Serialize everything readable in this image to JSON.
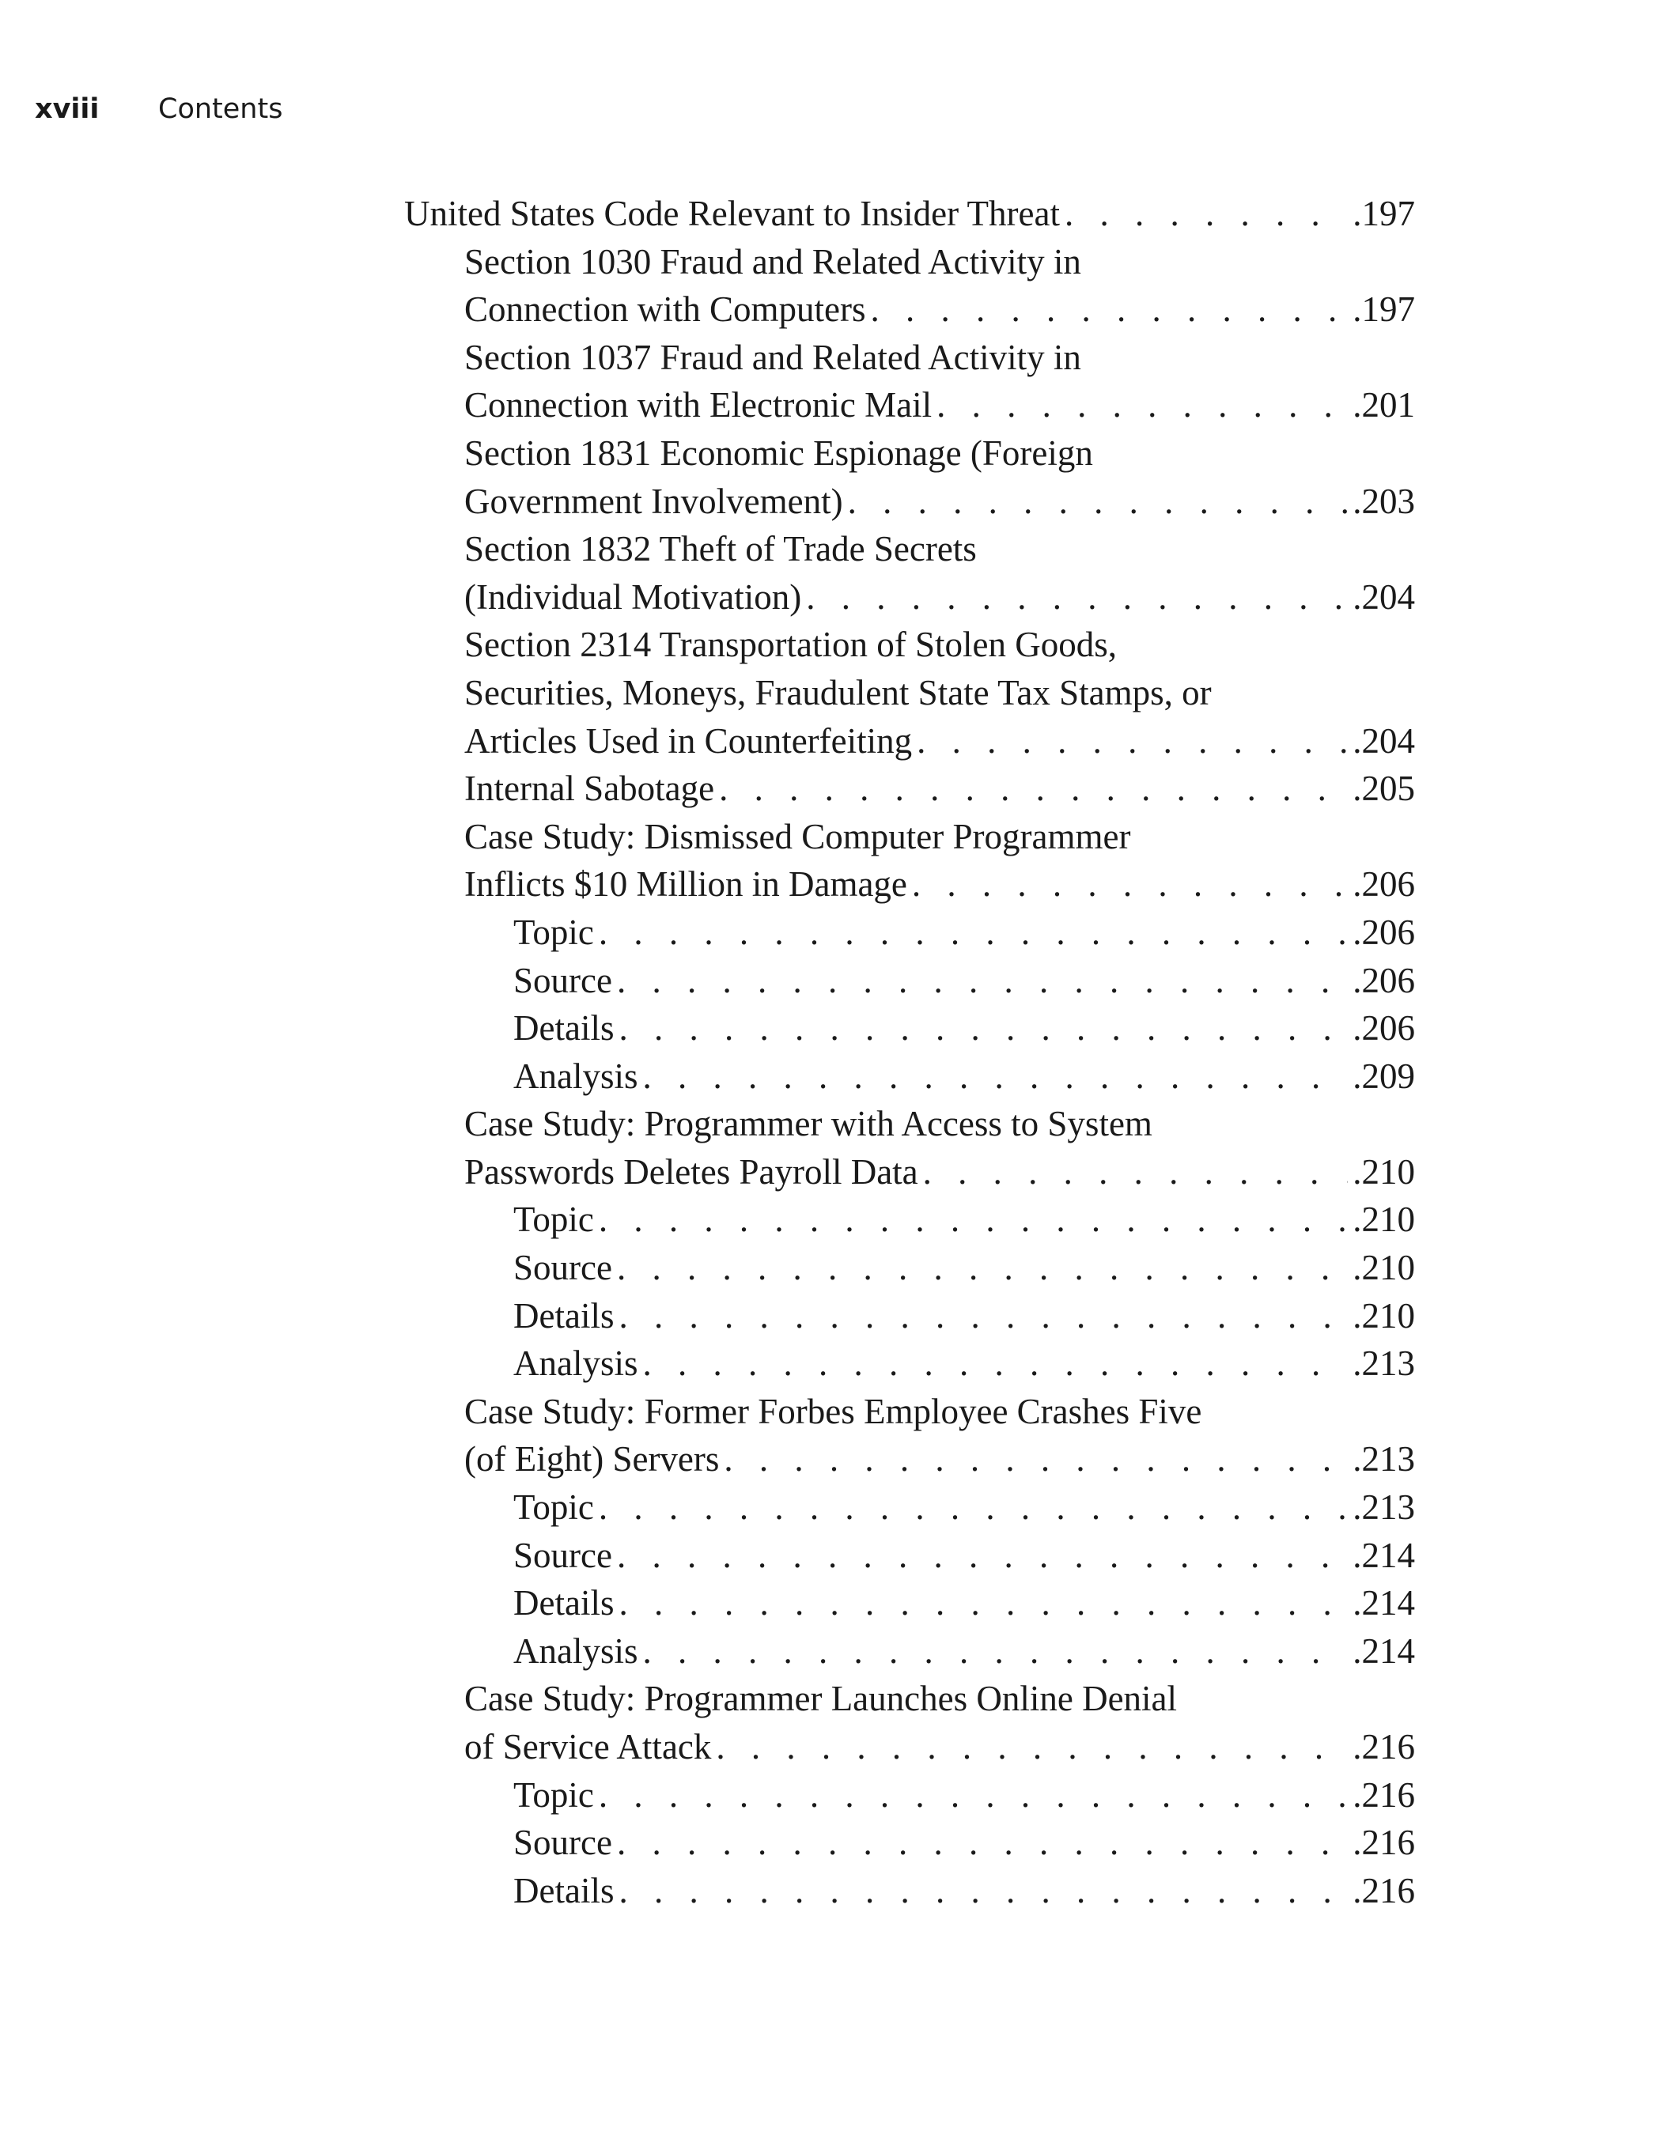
{
  "header": {
    "folio": "xviii",
    "title": "Contents"
  },
  "entries": [
    {
      "level": 0,
      "lines": [
        "United States Code Relevant to Insider Threat"
      ],
      "page": ".197"
    },
    {
      "level": 1,
      "lines": [
        "Section 1030 Fraud and Related Activity in",
        "Connection with Computers"
      ],
      "page": ".197"
    },
    {
      "level": 1,
      "lines": [
        "Section 1037 Fraud and Related Activity in",
        "Connection with Electronic Mail"
      ],
      "page": ".201"
    },
    {
      "level": 1,
      "lines": [
        "Section 1831 Economic Espionage (Foreign",
        "Government Involvement)"
      ],
      "page": ".203"
    },
    {
      "level": 1,
      "lines": [
        "Section 1832 Theft of Trade Secrets",
        "(Individual Motivation)"
      ],
      "page": ".204"
    },
    {
      "level": 1,
      "lines": [
        "Section 2314 Transportation of Stolen Goods,",
        "Securities, Moneys, Fraudulent State Tax Stamps, or",
        "Articles Used in Counterfeiting"
      ],
      "page": ".204"
    },
    {
      "level": 1,
      "lines": [
        "Internal Sabotage"
      ],
      "page": ".205"
    },
    {
      "level": 1,
      "lines": [
        "Case Study: Dismissed Computer Programmer",
        "Inflicts $10 Million in Damage"
      ],
      "page": ".206"
    },
    {
      "level": 2,
      "lines": [
        "Topic"
      ],
      "page": ".206"
    },
    {
      "level": 2,
      "lines": [
        "Source"
      ],
      "page": ".206"
    },
    {
      "level": 2,
      "lines": [
        "Details"
      ],
      "page": ".206"
    },
    {
      "level": 2,
      "lines": [
        "Analysis"
      ],
      "page": ".209"
    },
    {
      "level": 1,
      "lines": [
        "Case Study: Programmer with Access to System",
        "Passwords Deletes Payroll Data"
      ],
      "page": ".210"
    },
    {
      "level": 2,
      "lines": [
        "Topic"
      ],
      "page": ".210"
    },
    {
      "level": 2,
      "lines": [
        "Source"
      ],
      "page": ".210"
    },
    {
      "level": 2,
      "lines": [
        "Details"
      ],
      "page": ".210"
    },
    {
      "level": 2,
      "lines": [
        "Analysis"
      ],
      "page": ".213"
    },
    {
      "level": 1,
      "lines": [
        "Case Study: Former Forbes Employee Crashes Five",
        "(of Eight) Servers"
      ],
      "page": ".213"
    },
    {
      "level": 2,
      "lines": [
        "Topic"
      ],
      "page": ".213"
    },
    {
      "level": 2,
      "lines": [
        "Source"
      ],
      "page": ".214"
    },
    {
      "level": 2,
      "lines": [
        "Details"
      ],
      "page": ".214"
    },
    {
      "level": 2,
      "lines": [
        "Analysis"
      ],
      "page": ".214"
    },
    {
      "level": 1,
      "lines": [
        "Case Study: Programmer Launches Online Denial",
        "of Service Attack"
      ],
      "page": ".216"
    },
    {
      "level": 2,
      "lines": [
        "Topic"
      ],
      "page": ".216"
    },
    {
      "level": 2,
      "lines": [
        "Source"
      ],
      "page": ".216"
    },
    {
      "level": 2,
      "lines": [
        "Details"
      ],
      "page": ".216"
    }
  ]
}
